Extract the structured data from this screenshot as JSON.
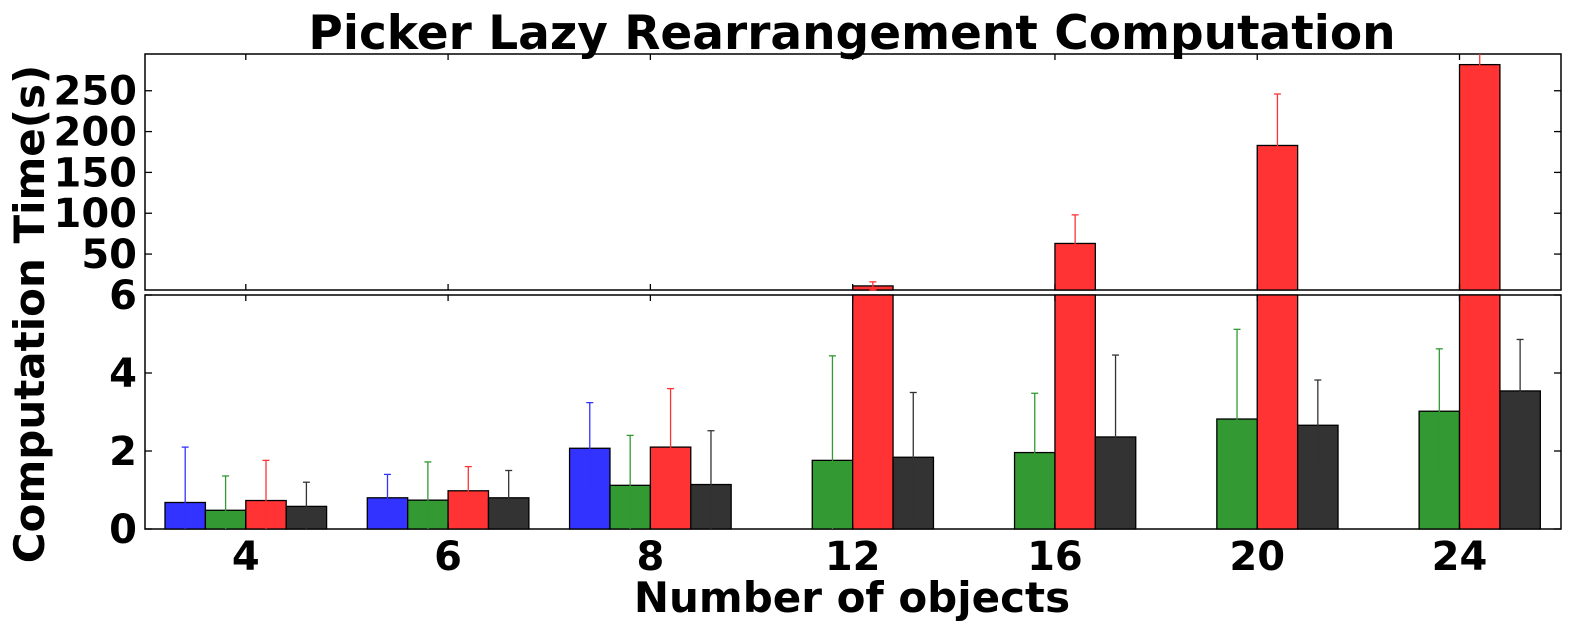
{
  "chart_data": {
    "type": "bar",
    "title": "Picker Lazy Rearrangement Computation",
    "xlabel": "Number of objects",
    "ylabel": "Computation Time(s)",
    "categories": [
      "4",
      "6",
      "8",
      "12",
      "16",
      "20",
      "24"
    ],
    "axis_break": {
      "lower": {
        "ylim": [
          0,
          6
        ],
        "yticks": [
          "0",
          "2",
          "4",
          "6"
        ]
      },
      "upper": {
        "ylim": [
          6,
          295
        ],
        "yticks": [
          "50",
          "100",
          "150",
          "200",
          "250"
        ]
      }
    },
    "legend": "none",
    "grid": false,
    "series": [
      {
        "color": "#3333ff",
        "values": [
          0.68,
          0.8,
          2.07,
          null,
          null,
          null,
          null
        ],
        "errors": [
          1.42,
          0.6,
          1.17,
          null,
          null,
          null,
          null
        ]
      },
      {
        "color": "#339933",
        "values": [
          0.48,
          0.74,
          1.12,
          1.76,
          1.96,
          2.82,
          3.02
        ],
        "errors": [
          0.88,
          0.98,
          1.28,
          2.68,
          1.52,
          2.3,
          1.6
        ]
      },
      {
        "color": "#ff3333",
        "values": [
          0.73,
          0.98,
          2.1,
          11,
          63,
          183,
          282
        ],
        "errors": [
          1.03,
          0.62,
          1.5,
          5,
          35,
          63,
          28
        ]
      },
      {
        "color": "#333333",
        "values": [
          0.58,
          0.8,
          1.14,
          1.84,
          2.36,
          2.66,
          3.54
        ],
        "errors": [
          0.62,
          0.7,
          1.38,
          1.66,
          2.1,
          1.16,
          1.32
        ]
      }
    ]
  }
}
